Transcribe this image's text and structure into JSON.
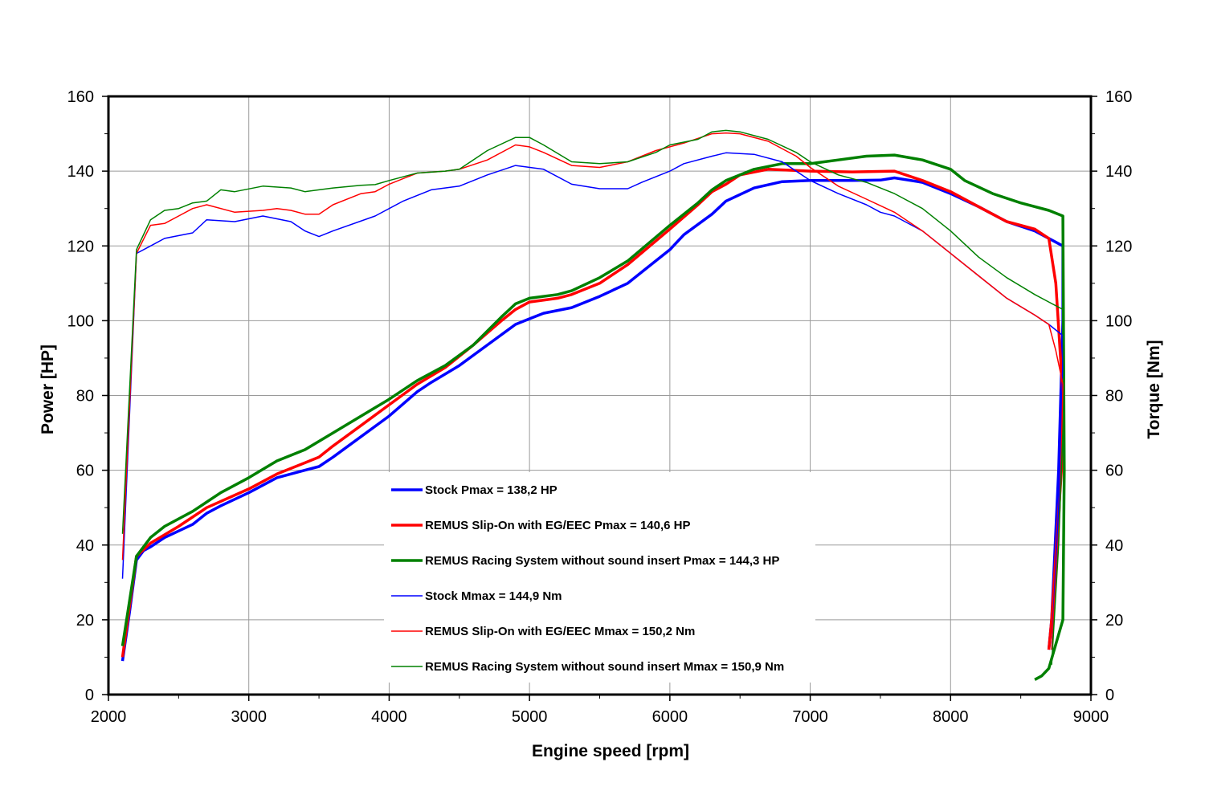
{
  "chart_data": {
    "type": "line",
    "title": "",
    "xlabel": "Engine speed [rpm]",
    "ylabel": "Power [HP]",
    "y2label": "Torque [Nm]",
    "xlim": [
      2000,
      9000
    ],
    "ylim": [
      0,
      160
    ],
    "y2lim": [
      0,
      160
    ],
    "x_ticks": [
      "2000",
      "3000",
      "4000",
      "5000",
      "6000",
      "7000",
      "8000",
      "9000"
    ],
    "y_ticks": [
      "0",
      "20",
      "40",
      "60",
      "80",
      "100",
      "120",
      "140",
      "160"
    ],
    "grid": true,
    "legend_position": "bottom-center",
    "series": [
      {
        "name": "Stock Pmax = 138,2 HP",
        "color": "#0000ff",
        "weight": "thick",
        "axis": "left",
        "points": [
          [
            2100,
            9
          ],
          [
            2150,
            22
          ],
          [
            2200,
            36
          ],
          [
            2250,
            38.5
          ],
          [
            2300,
            39.5
          ],
          [
            2400,
            42
          ],
          [
            2600,
            45.5
          ],
          [
            2700,
            48.5
          ],
          [
            2800,
            50.5
          ],
          [
            3000,
            54
          ],
          [
            3200,
            58
          ],
          [
            3400,
            60
          ],
          [
            3500,
            61
          ],
          [
            3600,
            63.5
          ],
          [
            3800,
            69
          ],
          [
            4000,
            74.5
          ],
          [
            4200,
            81
          ],
          [
            4300,
            83.5
          ],
          [
            4500,
            88
          ],
          [
            4700,
            93.5
          ],
          [
            4900,
            99
          ],
          [
            5000,
            100.5
          ],
          [
            5100,
            102
          ],
          [
            5300,
            103.5
          ],
          [
            5500,
            106.5
          ],
          [
            5700,
            110
          ],
          [
            5800,
            113
          ],
          [
            6000,
            119
          ],
          [
            6100,
            123
          ],
          [
            6300,
            128.5
          ],
          [
            6400,
            132
          ],
          [
            6600,
            135.5
          ],
          [
            6800,
            137.2
          ],
          [
            7000,
            137.5
          ],
          [
            7300,
            137.5
          ],
          [
            7500,
            137.6
          ],
          [
            7600,
            138.2
          ],
          [
            7800,
            137
          ],
          [
            8000,
            134
          ],
          [
            8200,
            130.5
          ],
          [
            8400,
            126.5
          ],
          [
            8600,
            124
          ],
          [
            8700,
            122
          ],
          [
            8800,
            120
          ],
          [
            8800,
            100
          ],
          [
            8770,
            60
          ],
          [
            8720,
            20
          ],
          [
            8700,
            12
          ]
        ]
      },
      {
        "name": "REMUS Slip-On with EG/EEC Pmax =  140,6 HP",
        "color": "#ff0000",
        "weight": "thick",
        "axis": "left",
        "points": [
          [
            2100,
            10
          ],
          [
            2200,
            37
          ],
          [
            2300,
            40.5
          ],
          [
            2500,
            45
          ],
          [
            2700,
            50
          ],
          [
            3000,
            55
          ],
          [
            3200,
            59
          ],
          [
            3500,
            63.5
          ],
          [
            3600,
            66.5
          ],
          [
            3800,
            72
          ],
          [
            4000,
            77.5
          ],
          [
            4200,
            83
          ],
          [
            4400,
            87.5
          ],
          [
            4600,
            93.5
          ],
          [
            4800,
            100
          ],
          [
            4900,
            103
          ],
          [
            5000,
            105
          ],
          [
            5200,
            106
          ],
          [
            5300,
            107
          ],
          [
            5500,
            110
          ],
          [
            5700,
            115
          ],
          [
            6000,
            124.5
          ],
          [
            6200,
            131
          ],
          [
            6300,
            134.5
          ],
          [
            6400,
            136.5
          ],
          [
            6500,
            139
          ],
          [
            6700,
            140.5
          ],
          [
            7000,
            140
          ],
          [
            7300,
            139.8
          ],
          [
            7600,
            140
          ],
          [
            7800,
            137.5
          ],
          [
            8000,
            134.5
          ],
          [
            8200,
            130.5
          ],
          [
            8400,
            126.5
          ],
          [
            8600,
            124.5
          ],
          [
            8700,
            122
          ],
          [
            8750,
            110
          ],
          [
            8800,
            80
          ],
          [
            8790,
            60
          ],
          [
            8720,
            20
          ],
          [
            8700,
            12
          ]
        ]
      },
      {
        "name": "REMUS Racing System without sound insert Pmax = 144,3 HP",
        "color": "#008000",
        "weight": "thick",
        "axis": "left",
        "points": [
          [
            2100,
            13
          ],
          [
            2200,
            37
          ],
          [
            2300,
            42
          ],
          [
            2400,
            45
          ],
          [
            2600,
            49
          ],
          [
            2800,
            54
          ],
          [
            3000,
            58
          ],
          [
            3200,
            62.5
          ],
          [
            3400,
            65.5
          ],
          [
            3600,
            70
          ],
          [
            3800,
            74.5
          ],
          [
            4000,
            79
          ],
          [
            4200,
            84
          ],
          [
            4400,
            88
          ],
          [
            4600,
            93.5
          ],
          [
            4800,
            101
          ],
          [
            4900,
            104.5
          ],
          [
            5000,
            106
          ],
          [
            5200,
            107
          ],
          [
            5300,
            108
          ],
          [
            5500,
            111.5
          ],
          [
            5700,
            116
          ],
          [
            6000,
            125.5
          ],
          [
            6200,
            131.5
          ],
          [
            6300,
            135
          ],
          [
            6400,
            137.5
          ],
          [
            6600,
            140.5
          ],
          [
            6800,
            142
          ],
          [
            7000,
            142
          ],
          [
            7200,
            143
          ],
          [
            7400,
            144
          ],
          [
            7600,
            144.3
          ],
          [
            7800,
            143
          ],
          [
            8000,
            140.5
          ],
          [
            8100,
            137.5
          ],
          [
            8300,
            134
          ],
          [
            8500,
            131.5
          ],
          [
            8700,
            129.5
          ],
          [
            8800,
            128
          ],
          [
            8810,
            60
          ],
          [
            8800,
            20
          ],
          [
            8700,
            7
          ],
          [
            8650,
            5
          ],
          [
            8600,
            4
          ]
        ]
      },
      {
        "name": "Stock Mmax = 144,9 Nm",
        "color": "#0000ff",
        "weight": "thin",
        "axis": "right",
        "points": [
          [
            2100,
            31
          ],
          [
            2200,
            118
          ],
          [
            2300,
            120
          ],
          [
            2400,
            122
          ],
          [
            2600,
            123.5
          ],
          [
            2700,
            127
          ],
          [
            2900,
            126.5
          ],
          [
            3100,
            128
          ],
          [
            3300,
            126.5
          ],
          [
            3400,
            124
          ],
          [
            3500,
            122.5
          ],
          [
            3600,
            124
          ],
          [
            3900,
            128
          ],
          [
            4100,
            132
          ],
          [
            4300,
            135
          ],
          [
            4500,
            136
          ],
          [
            4700,
            139
          ],
          [
            4900,
            141.5
          ],
          [
            5100,
            140.5
          ],
          [
            5300,
            136.5
          ],
          [
            5500,
            135.3
          ],
          [
            5700,
            135.3
          ],
          [
            5800,
            137
          ],
          [
            6000,
            140
          ],
          [
            6100,
            142
          ],
          [
            6300,
            144
          ],
          [
            6400,
            144.9
          ],
          [
            6600,
            144.5
          ],
          [
            6800,
            142.5
          ],
          [
            7000,
            137.5
          ],
          [
            7200,
            134
          ],
          [
            7400,
            131
          ],
          [
            7500,
            129
          ],
          [
            7600,
            128
          ],
          [
            7800,
            124
          ],
          [
            8000,
            118
          ],
          [
            8200,
            112
          ],
          [
            8400,
            106
          ],
          [
            8600,
            101.5
          ],
          [
            8700,
            99
          ],
          [
            8800,
            96
          ],
          [
            8800,
            90
          ],
          [
            8770,
            50
          ],
          [
            8720,
            12
          ]
        ]
      },
      {
        "name": "REMUS Slip-On with EG/EEC Mmax = 150,2 Nm",
        "color": "#ff0000",
        "weight": "thin",
        "axis": "right",
        "points": [
          [
            2100,
            36
          ],
          [
            2200,
            118
          ],
          [
            2300,
            125.5
          ],
          [
            2400,
            126
          ],
          [
            2500,
            128
          ],
          [
            2600,
            130
          ],
          [
            2700,
            131
          ],
          [
            2900,
            129
          ],
          [
            3100,
            129.5
          ],
          [
            3200,
            130
          ],
          [
            3300,
            129.5
          ],
          [
            3400,
            128.5
          ],
          [
            3500,
            128.5
          ],
          [
            3600,
            131
          ],
          [
            3800,
            134
          ],
          [
            3900,
            134.5
          ],
          [
            4000,
            136.5
          ],
          [
            4200,
            139.5
          ],
          [
            4400,
            140
          ],
          [
            4500,
            140.5
          ],
          [
            4700,
            143
          ],
          [
            4900,
            147
          ],
          [
            5000,
            146.5
          ],
          [
            5100,
            145
          ],
          [
            5300,
            141.5
          ],
          [
            5500,
            141
          ],
          [
            5700,
            142.5
          ],
          [
            5900,
            145.5
          ],
          [
            6100,
            147.5
          ],
          [
            6300,
            150
          ],
          [
            6400,
            150.2
          ],
          [
            6500,
            150
          ],
          [
            6700,
            148
          ],
          [
            6900,
            144
          ],
          [
            7000,
            141
          ],
          [
            7200,
            136
          ],
          [
            7400,
            132.5
          ],
          [
            7600,
            129
          ],
          [
            7800,
            124
          ],
          [
            8000,
            118
          ],
          [
            8200,
            112
          ],
          [
            8400,
            106
          ],
          [
            8600,
            101.5
          ],
          [
            8700,
            99
          ],
          [
            8750,
            92
          ],
          [
            8800,
            83
          ],
          [
            8780,
            50
          ],
          [
            8720,
            12
          ]
        ]
      },
      {
        "name": "REMUS Racing System without sound insert Mmax = 150,9 Nm",
        "color": "#008000",
        "weight": "thin",
        "axis": "right",
        "points": [
          [
            2100,
            43
          ],
          [
            2200,
            119
          ],
          [
            2300,
            127
          ],
          [
            2400,
            129.5
          ],
          [
            2500,
            130
          ],
          [
            2600,
            131.5
          ],
          [
            2700,
            132
          ],
          [
            2800,
            135
          ],
          [
            2900,
            134.5
          ],
          [
            3100,
            136
          ],
          [
            3300,
            135.5
          ],
          [
            3400,
            134.5
          ],
          [
            3500,
            135
          ],
          [
            3600,
            135.5
          ],
          [
            3800,
            136.2
          ],
          [
            3900,
            136.4
          ],
          [
            4000,
            137.5
          ],
          [
            4200,
            139.5
          ],
          [
            4400,
            140
          ],
          [
            4500,
            140.5
          ],
          [
            4700,
            145.5
          ],
          [
            4900,
            149
          ],
          [
            5000,
            149
          ],
          [
            5100,
            147
          ],
          [
            5300,
            142.5
          ],
          [
            5500,
            142
          ],
          [
            5700,
            142.5
          ],
          [
            5900,
            145
          ],
          [
            6000,
            147
          ],
          [
            6200,
            148.5
          ],
          [
            6300,
            150.5
          ],
          [
            6400,
            150.9
          ],
          [
            6500,
            150.5
          ],
          [
            6700,
            148.5
          ],
          [
            6900,
            145
          ],
          [
            7000,
            142.5
          ],
          [
            7200,
            139
          ],
          [
            7400,
            137
          ],
          [
            7600,
            134
          ],
          [
            7800,
            130
          ],
          [
            8000,
            124
          ],
          [
            8200,
            117
          ],
          [
            8400,
            111.5
          ],
          [
            8600,
            107
          ],
          [
            8700,
            105
          ],
          [
            8800,
            103
          ],
          [
            8810,
            80
          ],
          [
            8770,
            40
          ],
          [
            8720,
            8
          ]
        ]
      }
    ]
  }
}
